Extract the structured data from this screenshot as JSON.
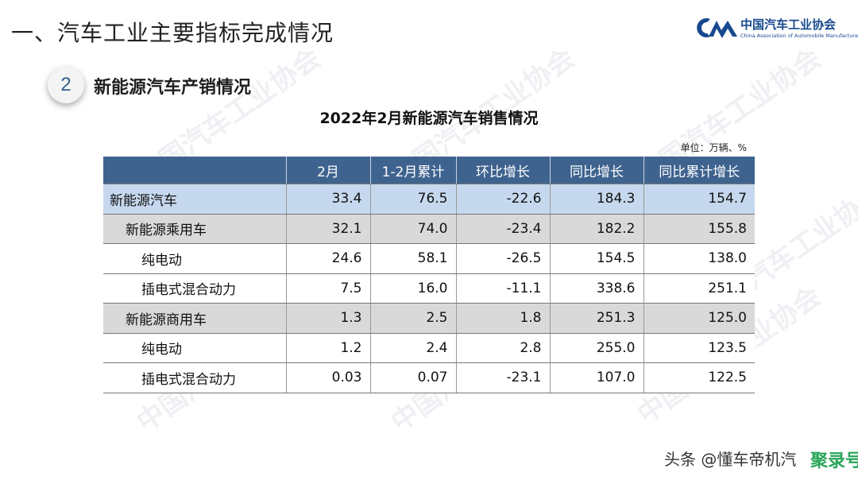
{
  "header": {
    "title": "一、汽车工业主要指标完成情况"
  },
  "logo": {
    "name_cn": "中国汽车工业协会",
    "name_en": "China Association of Automobile Manufacturers",
    "brand_color": "#17498f"
  },
  "section": {
    "number": "2",
    "title": "新能源汽车产销情况"
  },
  "table": {
    "title": "2022年2月新能源汽车销售情况",
    "unit_note": "单位：万辆、%",
    "header_color": "#3f638f",
    "columns": [
      "",
      "2月",
      "1-2月累计",
      "环比增长",
      "同比增长",
      "同比累计增长"
    ],
    "rows": [
      {
        "label": "新能源汽车",
        "level": 0,
        "values": [
          "33.4",
          "76.5",
          "-22.6",
          "184.3",
          "154.7"
        ]
      },
      {
        "label": "新能源乘用车",
        "level": 1,
        "values": [
          "32.1",
          "74.0",
          "-23.4",
          "182.2",
          "155.8"
        ]
      },
      {
        "label": "纯电动",
        "level": 2,
        "values": [
          "24.6",
          "58.1",
          "-26.5",
          "154.5",
          "138.0"
        ]
      },
      {
        "label": "插电式混合动力",
        "level": 2,
        "values": [
          "7.5",
          "16.0",
          "-11.1",
          "338.6",
          "251.1"
        ]
      },
      {
        "label": "新能源商用车",
        "level": 1,
        "values": [
          "1.3",
          "2.5",
          "1.8",
          "251.3",
          "125.0"
        ]
      },
      {
        "label": "纯电动",
        "level": 2,
        "values": [
          "1.2",
          "2.4",
          "2.8",
          "255.0",
          "123.5"
        ]
      },
      {
        "label": "插电式混合动力",
        "level": 2,
        "values": [
          "0.03",
          "0.07",
          "-23.1",
          "107.0",
          "122.5"
        ]
      }
    ]
  },
  "footer": {
    "credit": "头条 @懂车帝机汽",
    "stamp": "聚录号"
  }
}
